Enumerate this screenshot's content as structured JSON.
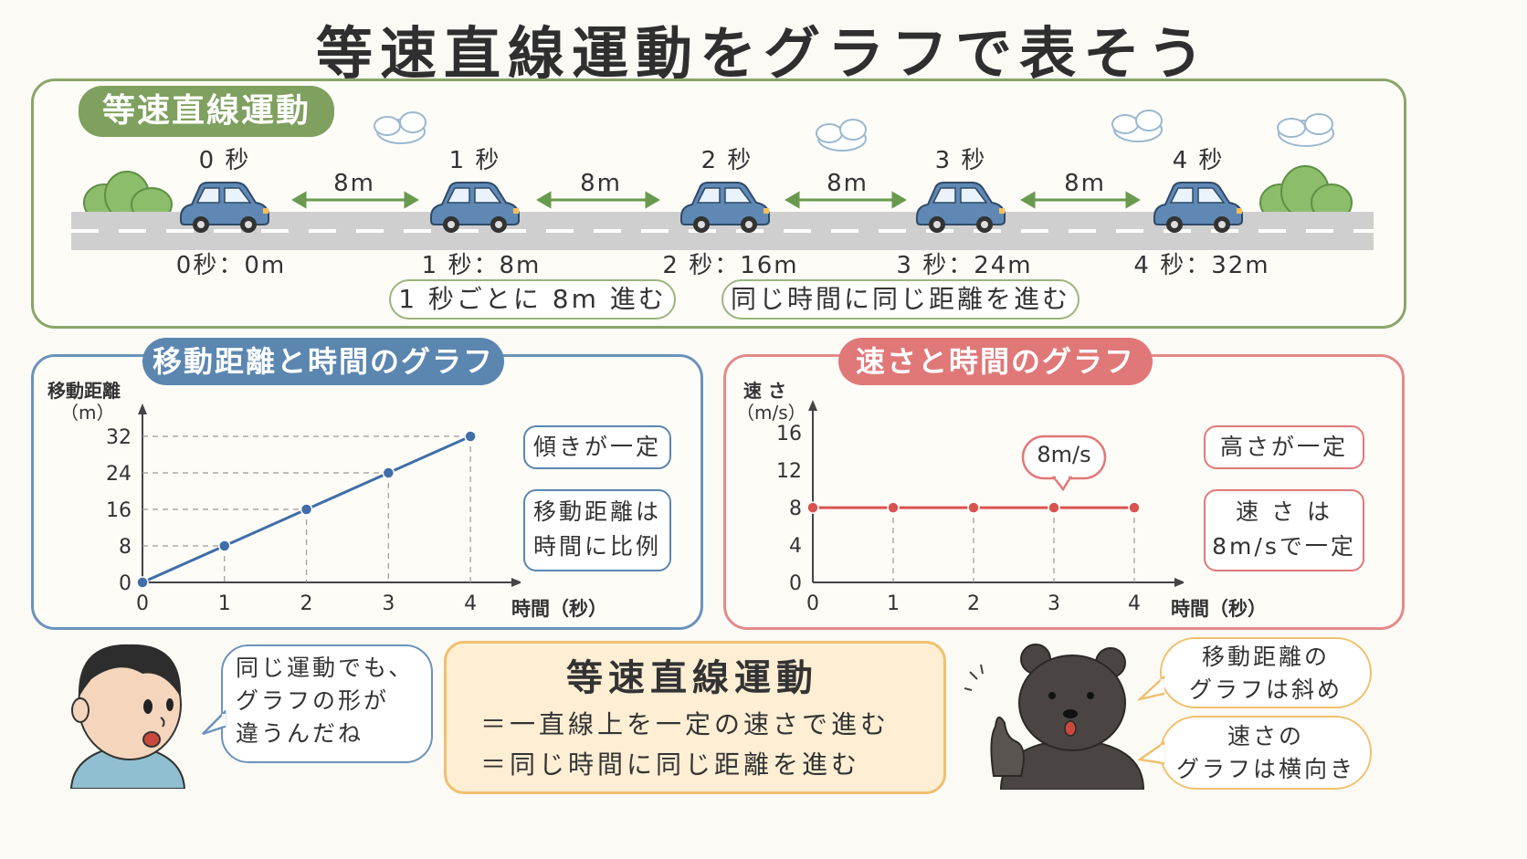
{
  "title": "等速直線運動をグラフで表そう",
  "top": {
    "tab": "等速直線運動",
    "times": [
      "0 秒",
      "1 秒",
      "2 秒",
      "3 秒",
      "4 秒"
    ],
    "gaps": [
      "8m",
      "8m",
      "8m",
      "8m"
    ],
    "positions": [
      "0秒：0m",
      "1 秒：8m",
      "2 秒：16m",
      "3 秒：24m",
      "4 秒：32m"
    ],
    "note1": "1 秒ごとに 8m 進む",
    "note2": "同じ時間に同じ距離を進む"
  },
  "dist_panel": {
    "tab": "移動距離と時間のグラフ",
    "ylabel1": "移動距離",
    "ylabel2": "（m）",
    "xlabel": "時間（秒）",
    "box1": "傾きが一定",
    "box2_l1": "移動距離は",
    "box2_l2": "時間に比例"
  },
  "speed_panel": {
    "tab": "速さと時間のグラフ",
    "ylabel1": "速 さ",
    "ylabel2": "（m/s）",
    "xlabel": "時間（秒）",
    "callout": "8m/s",
    "box1": "高さが一定",
    "box2_l1": "速 さ は",
    "box2_l2": "8m/sで一定"
  },
  "chart_data": [
    {
      "type": "line",
      "x": [
        0,
        1,
        2,
        3,
        4
      ],
      "y": [
        0,
        8,
        16,
        24,
        32
      ],
      "xticks": [
        "0",
        "1",
        "2",
        "3",
        "4"
      ],
      "yticks": [
        "0",
        "8",
        "16",
        "24",
        "32"
      ],
      "xlim": [
        0,
        4.5
      ],
      "ylim": [
        0,
        34
      ],
      "color": "#3f6ea8"
    },
    {
      "type": "line",
      "x": [
        0,
        1,
        2,
        3,
        4
      ],
      "y": [
        8,
        8,
        8,
        8,
        8
      ],
      "xticks": [
        "0",
        "1",
        "2",
        "3",
        "4"
      ],
      "yticks": [
        "0",
        "4",
        "8",
        "12",
        "16"
      ],
      "xlim": [
        0,
        4.5
      ],
      "ylim": [
        0,
        17
      ],
      "color": "#d9534f"
    }
  ],
  "boy_speech": [
    "同じ運動でも、",
    "グラフの形が",
    "違うんだね"
  ],
  "summary": {
    "title": "等速直線運動",
    "line1": "＝一直線上を一定の速さで進む",
    "line2": "＝同じ時間に同じ距離を進む"
  },
  "bear_speech1": [
    "移動距離の",
    "グラフは斜め"
  ],
  "bear_speech2": [
    "速さの",
    "グラフは横向き"
  ],
  "colors": {
    "green": "#7fa05e",
    "blue": "#5b86b0",
    "red": "#e07878",
    "orange": "#f0c070",
    "car": "#5f88b5"
  }
}
